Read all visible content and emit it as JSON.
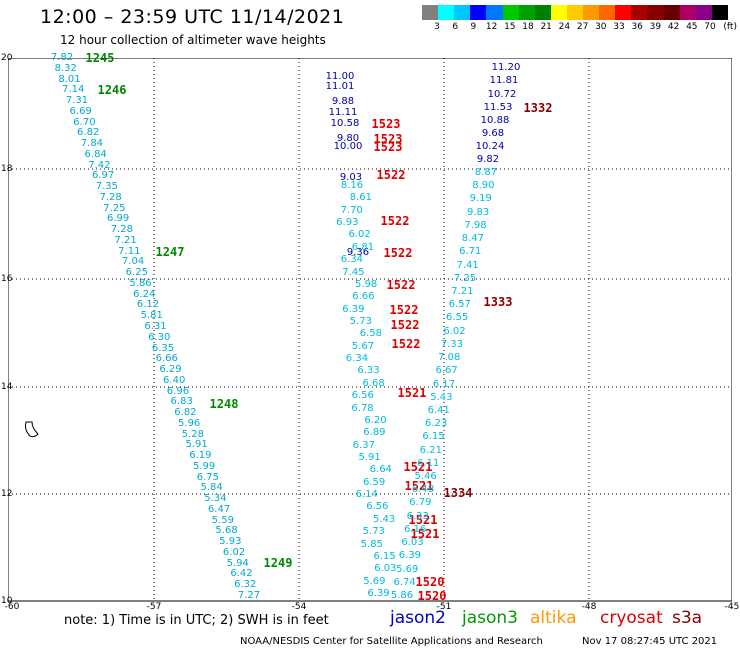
{
  "header": {
    "title": "12:00 – 23:59 UTC 11/14/2021",
    "subtitle": "12 hour collection of altimeter wave heights"
  },
  "color_scale": {
    "unit_label": "(ft)",
    "colors": [
      "#808080",
      "#00ffff",
      "#00c8ff",
      "#0000ff",
      "#0078ff",
      "#00c800",
      "#00a000",
      "#008000",
      "#ffff00",
      "#ffcc00",
      "#ff9900",
      "#ff6600",
      "#ff0000",
      "#aa0000",
      "#880000",
      "#660000",
      "#aa0066",
      "#880088",
      "#000000"
    ],
    "labels": [
      "3",
      "6",
      "9",
      "12",
      "15",
      "18",
      "21",
      "24",
      "27",
      "30",
      "33",
      "36",
      "39",
      "42",
      "45",
      "70"
    ]
  },
  "axes": {
    "lat_labels": [
      "20",
      "18",
      "16",
      "14",
      "12",
      "10"
    ],
    "lon_labels": [
      "-60",
      "-57",
      "-54",
      "-51",
      "-48",
      "-45"
    ]
  },
  "tracks": {
    "colors": {
      "cyan": "#00aacc",
      "cyan2": "#00bbdd",
      "blue": "#0000aa",
      "green": "#008800",
      "red": "#dd0000",
      "maroon": "#880000"
    },
    "west_values": [
      "7.82",
      "8.32",
      "8.01",
      "7.14",
      "7.31",
      "6.69",
      "6.70",
      "6.82",
      "7.84",
      "6.84",
      "7.42",
      "6.97",
      "7.35",
      "7.28",
      "7.25",
      "6.99",
      "7.28",
      "7.21",
      "7.11",
      "7.04",
      "6.25",
      "5.86",
      "6.24",
      "6.12",
      "5.81",
      "6.31",
      "6.30",
      "6.35",
      "6.66",
      "6.29",
      "6.40",
      "6.96",
      "6.83",
      "6.82",
      "5.96",
      "5.28",
      "5.91",
      "6.19",
      "5.99",
      "6.75",
      "5.84",
      "5.34",
      "6.47",
      "5.59",
      "5.68",
      "5.93",
      "6.02",
      "5.94",
      "6.42",
      "6.32",
      "7.27"
    ],
    "west_times": [
      "1245",
      "1246",
      "1247",
      "1248",
      "1249"
    ],
    "mid_blue_values": [
      "11.00",
      "11.01",
      "9.88",
      "11.11",
      "10.58",
      "9.80",
      "10.00",
      "9.03",
      "9.36"
    ],
    "mid_cyan_values": [
      "8.16",
      "8.61",
      "7.70",
      "6.93",
      "6.02",
      "6.81",
      "6.34",
      "7.45",
      "5.98",
      "6.66",
      "6.39",
      "5.73",
      "6.58",
      "5.67",
      "6.34",
      "6.33",
      "6.68",
      "6.56",
      "6.78",
      "6.20",
      "6.89",
      "6.37",
      "5.91",
      "6.64",
      "6.59",
      "6.14",
      "6.56",
      "5.43",
      "5.73",
      "5.85",
      "6.15",
      "6.03",
      "5.69",
      "6.39"
    ],
    "mid_times": [
      "1523",
      "1523",
      "1523",
      "1522",
      "1522",
      "1522",
      "1522",
      "1522",
      "1522",
      "1522",
      "1521",
      "1521",
      "1521",
      "1521",
      "1521",
      "1520",
      "1520"
    ],
    "east_blue_values": [
      "11.20",
      "11.81",
      "10.72",
      "11.53",
      "10.88",
      "9.68",
      "10.24",
      "9.82"
    ],
    "east_cyan_values": [
      "8.87",
      "8.90",
      "9.19",
      "9.83",
      "7.98",
      "8.47",
      "6.71",
      "7.41",
      "7.25",
      "7.21",
      "6.57",
      "6.55",
      "6.02",
      "7.33",
      "7.08",
      "6.67",
      "6.17",
      "5.43",
      "6.41",
      "6.23",
      "6.15",
      "6.21",
      "6.11",
      "5.46",
      "6.48",
      "6.79",
      "6.33",
      "6.16",
      "6.03",
      "6.39",
      "5.69",
      "6.74",
      "5.86"
    ],
    "east_times": [
      "1332",
      "1333",
      "1334"
    ]
  },
  "footer": {
    "note": "note:  1) Time is in UTC;  2) SWH is in feet",
    "legend": [
      {
        "label": "jason2",
        "color": "#0000cc"
      },
      {
        "label": "jason3",
        "color": "#009900"
      },
      {
        "label": "altika",
        "color": "#ff9900"
      },
      {
        "label": "cryosat",
        "color": "#dd0000"
      },
      {
        "label": "s3a",
        "color": "#880000"
      }
    ],
    "credit": "NOAA/NESDIS Center for Satellite Applications and Research",
    "timestamp": "Nov 17 08:27:45 UTC 2021"
  }
}
